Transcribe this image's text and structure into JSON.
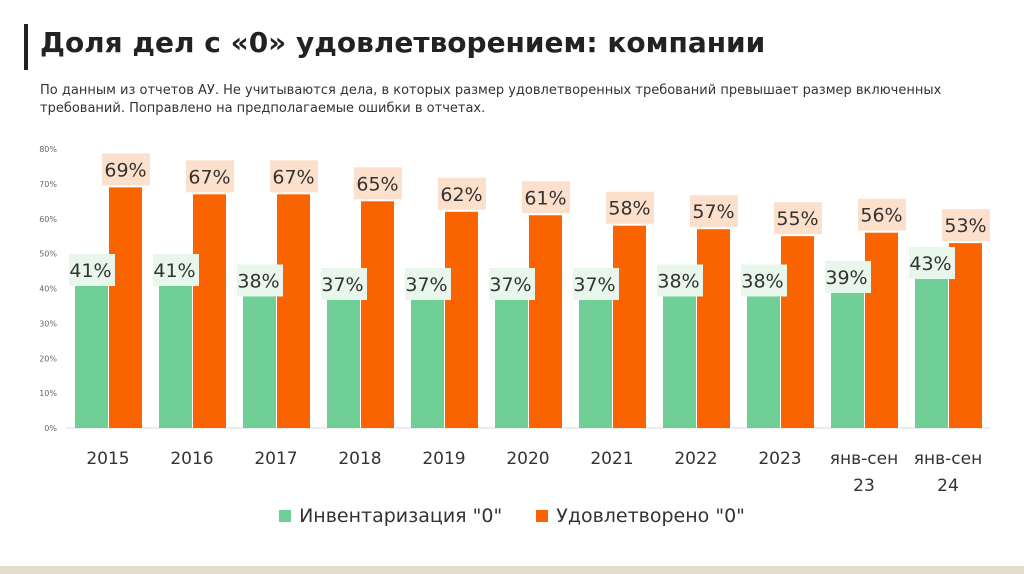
{
  "header": {
    "title": "Доля дел с «0» удовлетворением: компании",
    "subtitle": "По данным из отчетов АУ. Не учитываются дела, в которых размер удовлетворенных требований превышает размер включенных требований. Поправлено на предполагаемые ошибки в отчетах."
  },
  "colors": {
    "series1": "#6fcf97",
    "series2": "#fa6400",
    "label1_bg": "#e8f6ec",
    "label2_bg": "#fde0cb"
  },
  "chart_data": {
    "type": "bar",
    "title": "Доля дел с «0» удовлетворением: компании",
    "categories": [
      "2015",
      "2016",
      "2017",
      "2018",
      "2019",
      "2020",
      "2021",
      "2022",
      "2023",
      "янв-сен 23",
      "янв-сен 24"
    ],
    "series": [
      {
        "name": "Инвентаризация \"0\"",
        "values": [
          41,
          41,
          38,
          37,
          37,
          37,
          37,
          38,
          38,
          39,
          43
        ]
      },
      {
        "name": "Удовлетворено \"0\"",
        "values": [
          69,
          67,
          67,
          65,
          62,
          61,
          58,
          57,
          55,
          56,
          53
        ]
      }
    ],
    "ylim": [
      0,
      80
    ],
    "yticks": [
      "0%",
      "10%",
      "20%",
      "30%",
      "40%",
      "50%",
      "60%",
      "70%",
      "80%"
    ],
    "data_labels": [
      [
        "41%",
        "41%",
        "38%",
        "37%",
        "37%",
        "37%",
        "37%",
        "38%",
        "38%",
        "39%",
        "43%"
      ],
      [
        "69%",
        "67%",
        "67%",
        "65%",
        "62%",
        "61%",
        "58%",
        "57%",
        "55%",
        "56%",
        "53%"
      ]
    ],
    "legend_position": "bottom",
    "grid": false
  }
}
